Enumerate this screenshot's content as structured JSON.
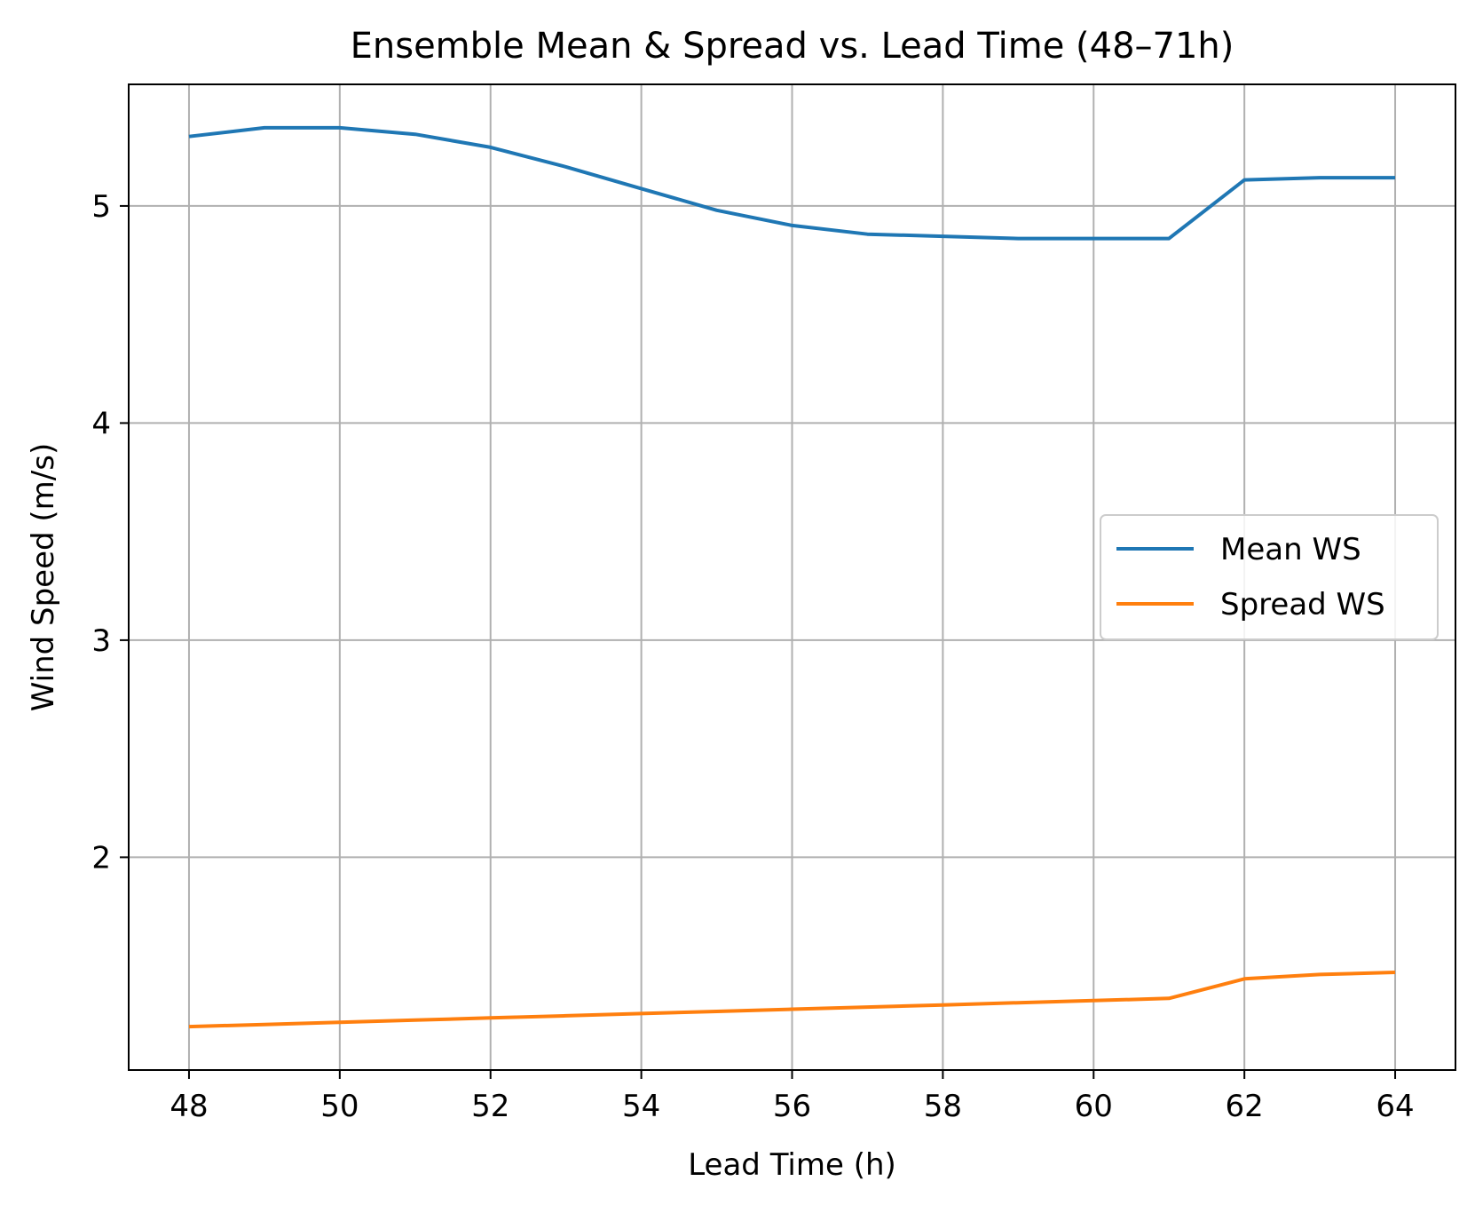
{
  "chart_data": {
    "type": "line",
    "title": "Ensemble Mean & Spread vs. Lead Time (48–71h)",
    "xlabel": "Lead Time (h)",
    "ylabel": "Wind Speed (m/s)",
    "x": [
      48,
      49,
      50,
      51,
      52,
      53,
      54,
      55,
      56,
      57,
      58,
      59,
      60,
      61,
      62,
      63,
      64
    ],
    "series": [
      {
        "name": "Mean WS",
        "color": "#1f77b4",
        "values": [
          5.32,
          5.36,
          5.36,
          5.33,
          5.27,
          5.18,
          5.08,
          4.98,
          4.91,
          4.87,
          4.86,
          4.85,
          4.85,
          4.85,
          5.12,
          5.13,
          5.13
        ]
      },
      {
        "name": "Spread WS",
        "color": "#ff7f0e",
        "values": [
          1.22,
          1.23,
          1.24,
          1.25,
          1.26,
          1.27,
          1.28,
          1.29,
          1.3,
          1.31,
          1.32,
          1.33,
          1.34,
          1.35,
          1.44,
          1.46,
          1.47
        ]
      }
    ],
    "xticks": [
      48,
      50,
      52,
      54,
      56,
      58,
      60,
      62,
      64
    ],
    "yticks": [
      2,
      3,
      4,
      5
    ],
    "xlim": [
      47.2,
      64.8
    ],
    "ylim": [
      1.02,
      5.56
    ],
    "grid": true,
    "legend": "center-right"
  }
}
